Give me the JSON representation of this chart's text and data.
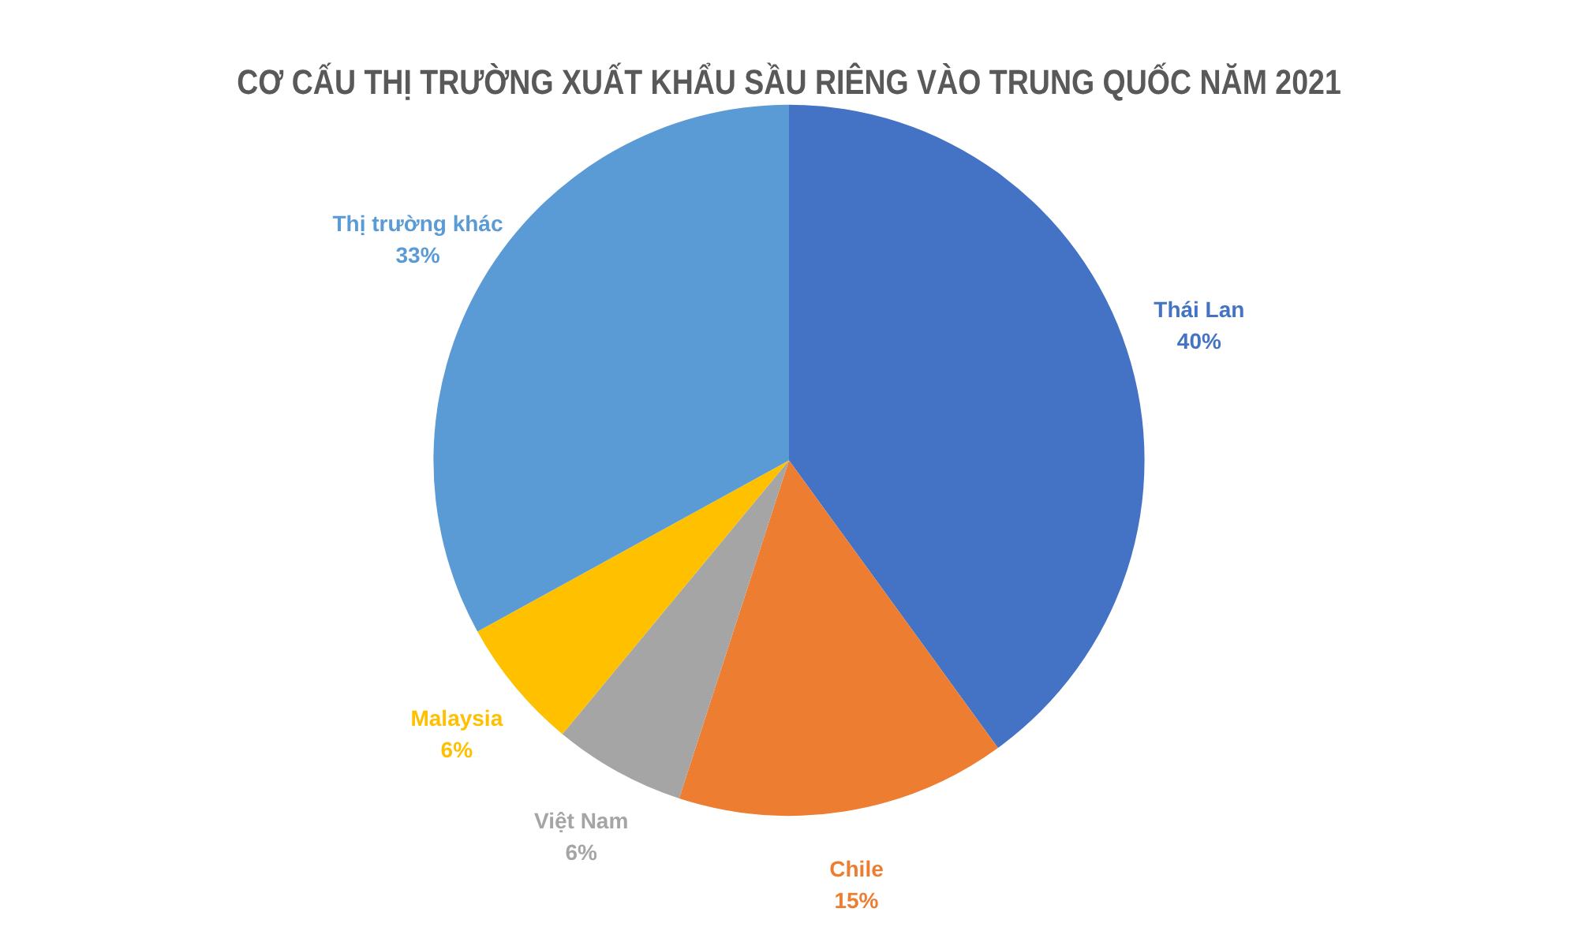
{
  "chart_data": {
    "type": "pie",
    "title": "CƠ CẤU THỊ TRƯỜNG XUẤT KHẨU SẦU RIÊNG VÀO TRUNG QUỐC NĂM 2021",
    "categories": [
      "Thái Lan",
      "Chile",
      "Việt Nam",
      "Malaysia",
      "Thị trường khác"
    ],
    "values": [
      40,
      15,
      6,
      6,
      33
    ],
    "value_labels": [
      "40%",
      "15%",
      "6%",
      "6%",
      "33%"
    ],
    "colors": [
      "#4472c4",
      "#ed7d31",
      "#a5a5a5",
      "#ffc000",
      "#5b9bd5"
    ]
  }
}
